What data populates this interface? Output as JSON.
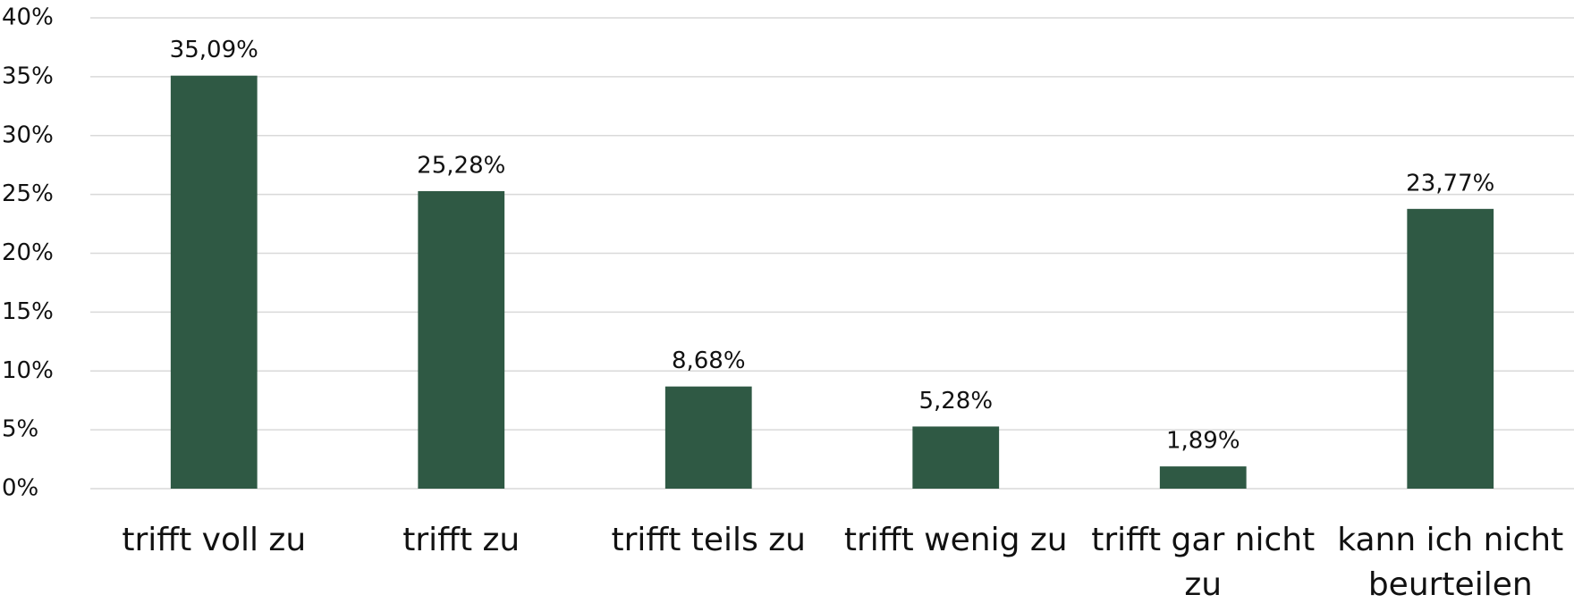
{
  "chart_data": {
    "type": "bar",
    "categories": [
      "trifft voll zu",
      "trifft zu",
      "trifft teils zu",
      "trifft wenig zu",
      "trifft gar nicht zu",
      "kann ich nicht beurteilen"
    ],
    "values": [
      35.09,
      25.28,
      8.68,
      5.28,
      1.89,
      23.77
    ],
    "value_labels": [
      "35,09%",
      "25,28%",
      "8,68%",
      "5,28%",
      "1,89%",
      "23,77%"
    ],
    "color": "#2f5944",
    "ylim": [
      0,
      40
    ],
    "yticks": [
      {
        "value": 0,
        "label": "0%"
      },
      {
        "value": 5,
        "label": "5%"
      },
      {
        "value": 10,
        "label": "10%"
      },
      {
        "value": 15,
        "label": "15%"
      },
      {
        "value": 20,
        "label": "20%"
      },
      {
        "value": 25,
        "label": "25%"
      },
      {
        "value": 30,
        "label": "30%"
      },
      {
        "value": 35,
        "label": "35%"
      },
      {
        "value": 40,
        "label": "40%"
      }
    ],
    "grid": true
  }
}
